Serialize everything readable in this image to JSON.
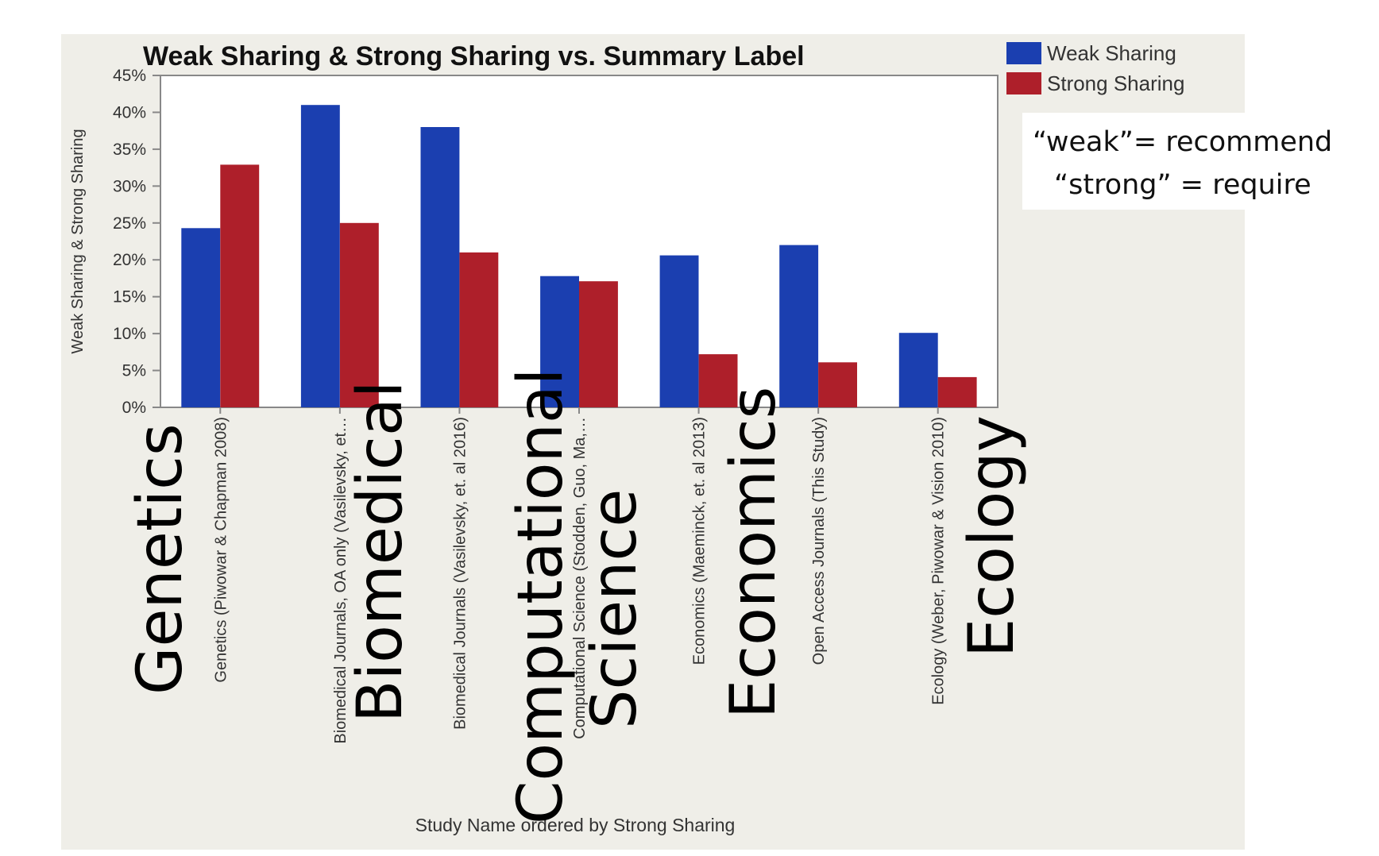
{
  "colors": {
    "background_panel": "#efeee8",
    "weak": "#1b3fb0",
    "strong": "#ae1f2a",
    "axis": "#888888",
    "text": "#111111"
  },
  "chart_data": {
    "type": "bar",
    "title": "Weak Sharing & Strong Sharing vs.  Summary Label",
    "xlabel": "Study Name ordered by Strong Sharing",
    "ylabel": "Weak Sharing & Strong Sharing",
    "ylim": [
      0,
      45
    ],
    "ytick_values": [
      0,
      5,
      10,
      15,
      20,
      25,
      30,
      35,
      40,
      45
    ],
    "ytick_labels": [
      "0%",
      "5%",
      "10%",
      "15%",
      "20%",
      "25%",
      "30%",
      "35%",
      "40%",
      "45%"
    ],
    "grid": false,
    "legend_position": "top-right",
    "categories": [
      "Genetics (Piwowar & Chapman 2008)",
      "Biomedical Journals, OA only (Vasilevsky, et…",
      "Biomedical Journals (Vasilevsky, et. al 2016)",
      "Computational Science (Stodden, Guo, Ma,…",
      "Economics (Maeminck, et. al 2013)",
      "Open Access Journals (This Study)",
      "Ecology (Weber, Piwowar & Vision 2010)"
    ],
    "series": [
      {
        "name": "Weak Sharing",
        "color": "#1b3fb0",
        "values": [
          24.3,
          41,
          38,
          17.8,
          20.6,
          22,
          10.1
        ]
      },
      {
        "name": "Strong Sharing",
        "color": "#ae1f2a",
        "values": [
          32.9,
          25,
          21,
          17.1,
          7.2,
          6.1,
          4.1
        ]
      }
    ]
  },
  "overlay": {
    "note_line1": "“weak”= recommend",
    "note_line2": "“strong” = require",
    "big_labels": [
      "Genetics",
      "Biomedical",
      "Computational",
      "Science",
      "Economics",
      "Ecology"
    ]
  }
}
